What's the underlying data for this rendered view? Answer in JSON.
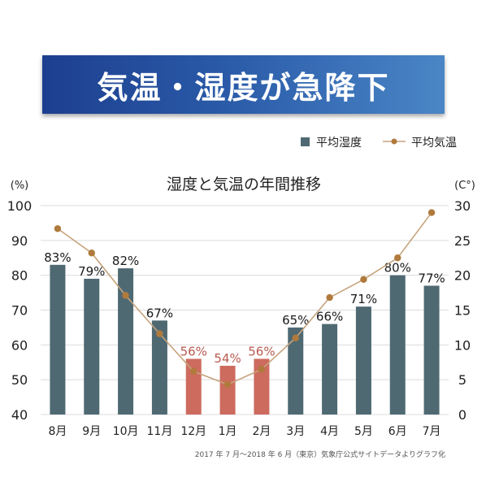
{
  "banner_title": "気温・湿度が急降下",
  "chart_data": {
    "type": "bar",
    "title": "湿度と気温の年間推移",
    "categories": [
      "8月",
      "9月",
      "10月",
      "11月",
      "12月",
      "1月",
      "2月",
      "3月",
      "4月",
      "5月",
      "6月",
      "7月"
    ],
    "series": [
      {
        "name": "平均湿度",
        "kind": "bar",
        "axis": "left",
        "values": [
          83,
          79,
          82,
          67,
          56,
          54,
          56,
          65,
          66,
          71,
          80,
          77
        ],
        "labels": [
          "83%",
          "79%",
          "82%",
          "67%",
          "56%",
          "54%",
          "56%",
          "65%",
          "66%",
          "71%",
          "80%",
          "77%"
        ],
        "highlight": [
          4,
          5,
          6
        ]
      },
      {
        "name": "平均気温",
        "kind": "line",
        "axis": "right",
        "values": [
          26.7,
          23.2,
          17.1,
          11.6,
          6.2,
          4.3,
          6.5,
          11.0,
          16.8,
          19.4,
          22.5,
          29.0
        ]
      }
    ],
    "y_left": {
      "label": "(%)",
      "min": 40,
      "max": 100,
      "ticks": [
        40,
        50,
        60,
        70,
        80,
        90,
        100
      ]
    },
    "y_right": {
      "label": "(C°)",
      "min": 0,
      "max": 30,
      "ticks": [
        0,
        5,
        10,
        15,
        20,
        25,
        30
      ]
    },
    "grid": true,
    "legend_position": "top-right",
    "note": "2017 年 7 月〜2018 年 6 月（東京）気象庁公式サイトデータよりグラフ化",
    "colors": {
      "bar": "#4f6973",
      "bar_highlight": "#cd6b5e",
      "label": "#1a1a1a",
      "label_highlight": "#b85a4e",
      "line": "#c6a37c",
      "marker": "#b07a3c",
      "grid": "#dcdcdc",
      "axis_text": "#222222"
    }
  }
}
